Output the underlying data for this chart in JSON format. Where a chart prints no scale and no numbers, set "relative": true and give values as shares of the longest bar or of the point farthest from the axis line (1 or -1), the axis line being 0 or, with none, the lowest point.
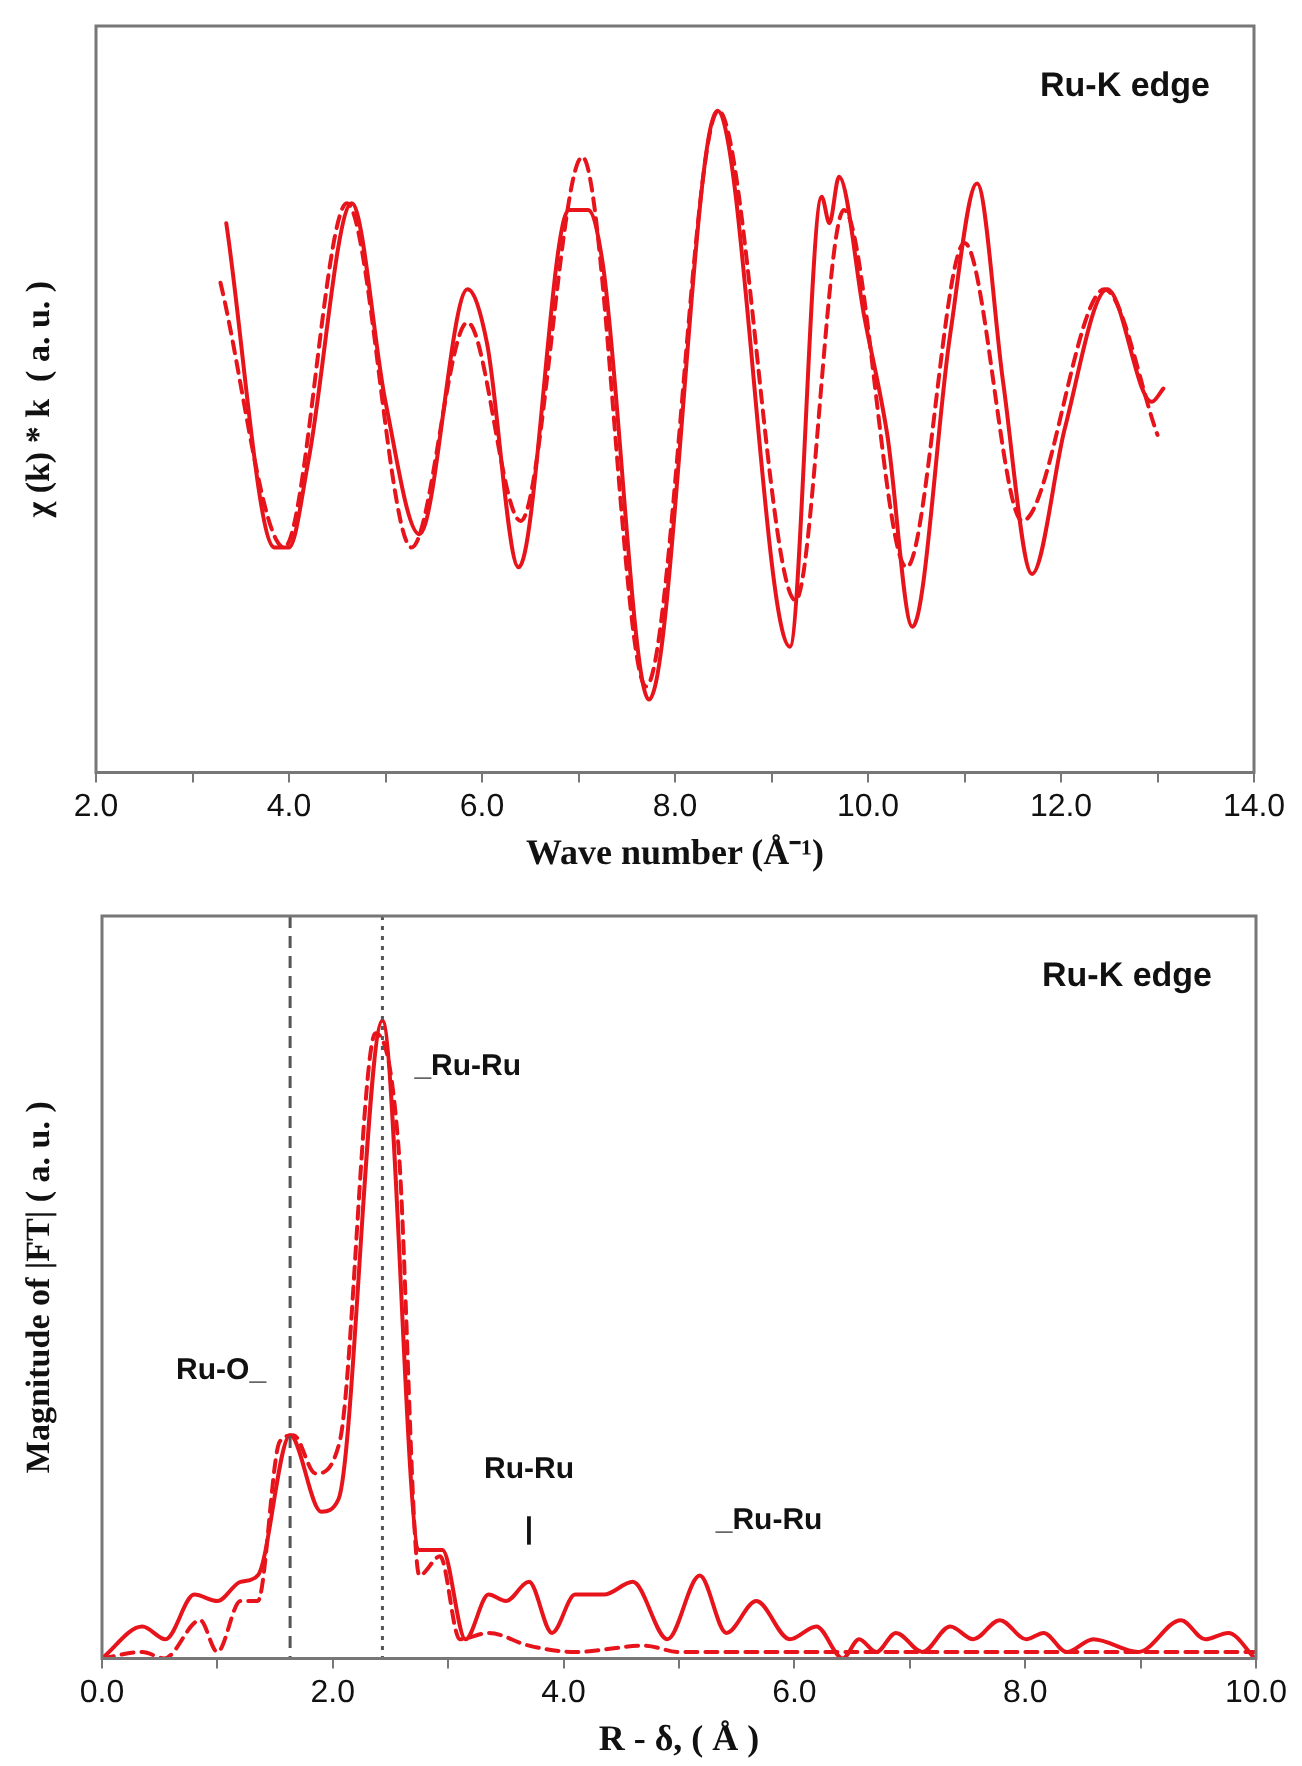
{
  "chart_data": [
    {
      "type": "line",
      "xlabel": "Wave number (Å⁻¹)",
      "ylabel": "χ (k) * k  ( a. u. )",
      "relative": true,
      "marker": "none",
      "grid": false,
      "xlim": [
        2,
        14
      ],
      "xticks": [
        {
          "value": 2,
          "label": "2.0"
        },
        {
          "value": 3,
          "label": null
        },
        {
          "value": 4,
          "label": "4.0"
        },
        {
          "value": 5,
          "label": null
        },
        {
          "value": 6,
          "label": "6.0"
        },
        {
          "value": 7,
          "label": null
        },
        {
          "value": 8,
          "label": "8.0"
        },
        {
          "value": 9,
          "label": null
        },
        {
          "value": 10,
          "label": "10.0"
        },
        {
          "value": 11,
          "label": null
        },
        {
          "value": 12,
          "label": "12.0"
        },
        {
          "value": 13,
          "label": null
        },
        {
          "value": 14,
          "label": "14.0"
        }
      ],
      "annotations": [
        "Ru-K edge"
      ],
      "series": [
        {
          "color": "#e8141c",
          "line_style": "solid",
          "x": [
            3.35,
            3.85,
            4.0,
            4.2,
            4.65,
            5.0,
            5.35,
            5.85,
            6.05,
            6.38,
            6.9,
            7.1,
            7.25,
            7.73,
            8.44,
            9.19,
            9.52,
            9.6,
            9.7,
            9.96,
            10.2,
            10.46,
            10.85,
            11.13,
            11.4,
            11.7,
            12.04,
            12.48,
            12.94,
            13.06
          ],
          "values": [
            0.83,
            0.34,
            0.34,
            0.47,
            0.86,
            0.56,
            0.36,
            0.73,
            0.65,
            0.31,
            0.85,
            0.85,
            0.77,
            0.11,
            1.0,
            0.19,
            0.87,
            0.83,
            0.9,
            0.69,
            0.51,
            0.22,
            0.66,
            0.89,
            0.59,
            0.3,
            0.52,
            0.73,
            0.56,
            0.58
          ]
        },
        {
          "color": "#e8141c",
          "line_style": "dashed",
          "x": [
            3.29,
            3.95,
            4.6,
            5.27,
            5.85,
            6.4,
            7.04,
            7.7,
            8.45,
            9.25,
            9.75,
            10.4,
            11.0,
            11.6,
            12.45,
            13.0
          ],
          "values": [
            0.74,
            0.34,
            0.86,
            0.34,
            0.68,
            0.38,
            0.93,
            0.13,
            1.0,
            0.26,
            0.85,
            0.31,
            0.8,
            0.38,
            0.73,
            0.51
          ]
        }
      ]
    },
    {
      "type": "line",
      "xlabel": "R - δ, ( Å )",
      "ylabel": "Magnitude of |FT| ( a. u. )",
      "relative": true,
      "marker": "none",
      "grid": false,
      "xlim": [
        0,
        10
      ],
      "xticks": [
        {
          "value": 0,
          "label": "0.0"
        },
        {
          "value": 1,
          "label": null
        },
        {
          "value": 2,
          "label": "2.0"
        },
        {
          "value": 3,
          "label": null
        },
        {
          "value": 4,
          "label": "4.0"
        },
        {
          "value": 5,
          "label": null
        },
        {
          "value": 6,
          "label": "6.0"
        },
        {
          "value": 7,
          "label": null
        },
        {
          "value": 8,
          "label": "8.0"
        },
        {
          "value": 9,
          "label": null
        },
        {
          "value": 10,
          "label": "10.0"
        }
      ],
      "ref_lines": [
        {
          "axis": "x",
          "value": 1.63,
          "color": "#555555",
          "line_style": "dashed"
        },
        {
          "axis": "x",
          "value": 2.43,
          "color": "#555555",
          "line_style": "dotted"
        }
      ],
      "annotations": [
        "Ru-K edge",
        {
          "text": "Ru-O_",
          "x": 1.63,
          "y": 0.35
        },
        {
          "text": "_Ru-Ru",
          "x": 2.43,
          "y": 1.0
        },
        "Ru-Ru",
        {
          "text": "|",
          "x": 3.7,
          "y": 0.12
        },
        {
          "text": "_Ru-Ru",
          "x": 5.18,
          "y": 0.13
        }
      ],
      "series": [
        {
          "color": "#e8141c",
          "line_style": "solid",
          "x": [
            0,
            0.35,
            0.55,
            0.8,
            1.0,
            1.2,
            1.35,
            1.63,
            1.9,
            2.05,
            2.43,
            2.75,
            2.95,
            3.15,
            3.35,
            3.5,
            3.7,
            3.9,
            4.1,
            4.35,
            4.6,
            4.9,
            5.18,
            5.41,
            5.67,
            5.96,
            6.19,
            6.42,
            6.56,
            6.71,
            6.88,
            7.11,
            7.35,
            7.55,
            7.78,
            8.01,
            8.16,
            8.36,
            8.59,
            8.98,
            9.35,
            9.56,
            9.76,
            9.99
          ],
          "values": [
            0,
            0.05,
            0.03,
            0.1,
            0.09,
            0.12,
            0.13,
            0.35,
            0.23,
            0.25,
            1.0,
            0.17,
            0.17,
            0.03,
            0.1,
            0.09,
            0.12,
            0.04,
            0.1,
            0.1,
            0.12,
            0.03,
            0.13,
            0.04,
            0.09,
            0.03,
            0.05,
            0,
            0.03,
            0.01,
            0.04,
            0.01,
            0.05,
            0.03,
            0.06,
            0.03,
            0.04,
            0.01,
            0.03,
            0.01,
            0.06,
            0.03,
            0.04,
            0
          ]
        },
        {
          "color": "#e8141c",
          "line_style": "dashed",
          "x": [
            0,
            0.35,
            0.54,
            0.85,
            1.0,
            1.2,
            1.35,
            1.54,
            1.66,
            1.85,
            2.06,
            2.37,
            2.57,
            2.75,
            2.93,
            3.1,
            3.35,
            3.7,
            4.1,
            4.7,
            5.0,
            6.0,
            7.0,
            8.0,
            9.0,
            10.0
          ],
          "values": [
            0,
            0.01,
            0,
            0.06,
            0.01,
            0.09,
            0.09,
            0.34,
            0.35,
            0.29,
            0.34,
            0.98,
            0.8,
            0.13,
            0.16,
            0.03,
            0.04,
            0.02,
            0.01,
            0.02,
            0.01,
            0.01,
            0.01,
            0.01,
            0.01,
            0.01
          ]
        }
      ]
    }
  ]
}
